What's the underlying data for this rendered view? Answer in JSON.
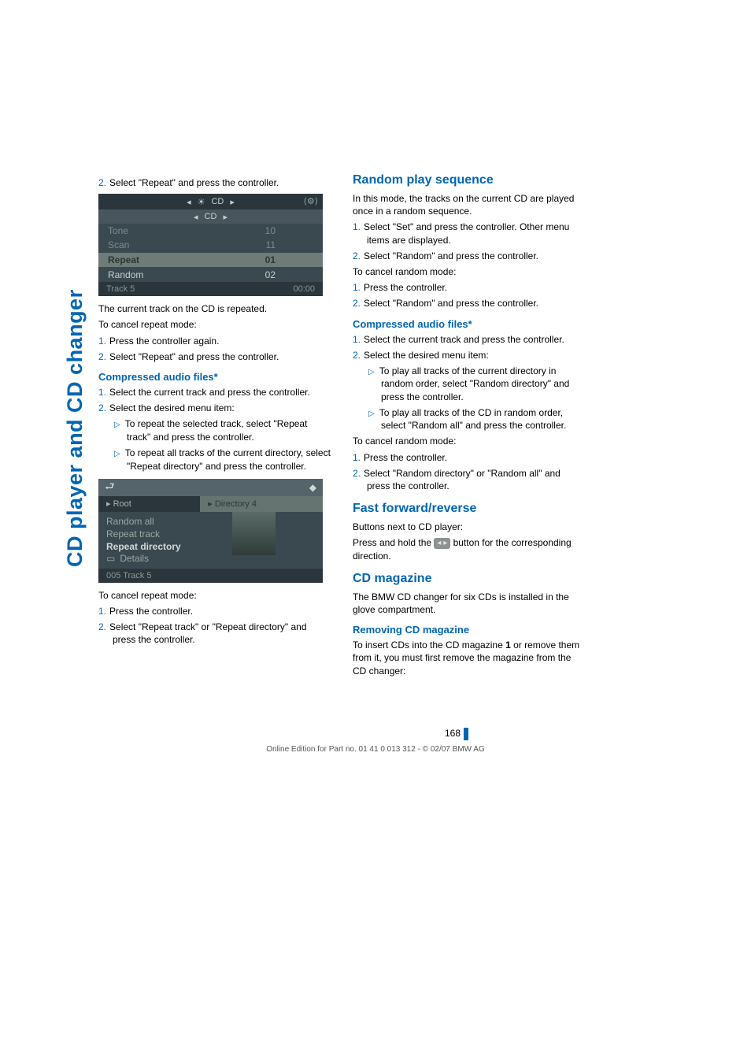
{
  "side_tab": "CD player and CD changer",
  "left": {
    "step_top": "Select \"Repeat\" and press the controller.",
    "screen1": {
      "hdr_left_arrow": "◂",
      "hdr_sun": "☀",
      "hdr_label": "CD",
      "hdr_right_arrow": "▸",
      "top_right": "⟨⚙⟩",
      "sub_left": "◂",
      "sub_label": "CD",
      "sub_right": "▸",
      "rows": [
        {
          "label": "Tone",
          "val": "10",
          "dim": true
        },
        {
          "label": "Scan",
          "val": "11",
          "dim": true
        },
        {
          "label": "Repeat",
          "val": "01",
          "sel": true
        },
        {
          "label": "Random",
          "val": "02",
          "dim": false
        }
      ],
      "foot_left": "Track 5",
      "foot_right": "00:00"
    },
    "after1_a": "The current track on the CD is repeated.",
    "after1_b": "To cancel repeat mode:",
    "cancel1": [
      "Press the controller again.",
      "Select \"Repeat\" and press the controller."
    ],
    "caf_head": "Compressed audio files*",
    "caf_steps": [
      "Select the current track and press the controller.",
      "Select the desired menu item:"
    ],
    "caf_bullets": [
      "To repeat the selected track, select \"Repeat track\" and press the controller.",
      "To repeat all tracks of the current directory, select \"Repeat directory\" and press the controller."
    ],
    "screen2": {
      "arrow": "⮐",
      "dot": "◆",
      "tab_l": "▸ Root",
      "tab_r": "▸ Directory 4",
      "items": [
        {
          "t": "Random all"
        },
        {
          "t": "Repeat track"
        },
        {
          "t": "Repeat directory",
          "sel": true
        }
      ],
      "details_icon": "▭",
      "details": "Details",
      "foot": "005 Track 5"
    },
    "cancel2_intro": "To cancel repeat mode:",
    "cancel2": [
      "Press the controller.",
      "Select \"Repeat track\" or \"Repeat directory\" and press the controller."
    ]
  },
  "right": {
    "h_random": "Random play sequence",
    "random_intro": "In this mode, the tracks on the current CD are played once in a random sequence.",
    "random_steps": [
      "Select \"Set\" and press the controller. Other menu items are displayed.",
      "Select \"Random\" and press the controller."
    ],
    "random_cancel_intro": "To cancel random mode:",
    "random_cancel": [
      "Press the controller.",
      "Select \"Random\" and press the controller."
    ],
    "caf_head": "Compressed audio files*",
    "caf_steps": [
      "Select the current track and press the controller.",
      "Select the desired menu item:"
    ],
    "caf_bullets": [
      "To play all tracks of the current directory in random order, select \"Random directory\" and press the controller.",
      "To play all tracks of the CD in random order, select \"Random all\" and press the controller."
    ],
    "caf_cancel_intro": "To cancel random mode:",
    "caf_cancel": [
      "Press the controller.",
      "Select \"Random directory\" or \"Random all\" and press the controller."
    ],
    "h_ff": "Fast forward/reverse",
    "ff_a": "Buttons next to CD player:",
    "ff_b_pre": "Press and hold the ",
    "ff_btn": "◂   ▸",
    "ff_b_post": " button for the corresponding direction.",
    "h_mag": "CD magazine",
    "mag_p": "The BMW CD changer for six CDs is installed in the glove compartment.",
    "sh_remove": "Removing CD magazine",
    "remove_p_pre": "To insert CDs into the CD magazine ",
    "remove_bold": "1",
    "remove_p_post": " or remove them from it, you must first remove the magazine from the CD changer:"
  },
  "footer": {
    "page": "168",
    "line": "Online Edition for Part no. 01 41 0 013 312 - © 02/07 BMW AG"
  }
}
